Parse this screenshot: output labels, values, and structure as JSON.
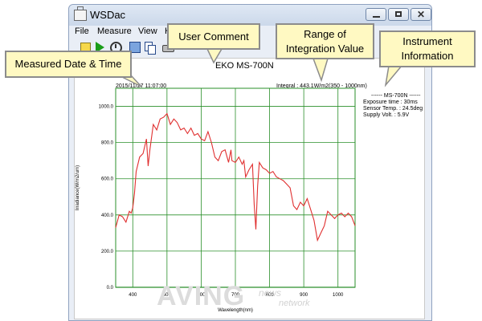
{
  "window": {
    "title": "WSDac",
    "menu": [
      "File",
      "Measure",
      "View",
      "H"
    ]
  },
  "toolbar": {
    "icons": [
      "open-icon",
      "run-icon",
      "timer-icon",
      "save-icon",
      "copy-icon",
      "print-icon"
    ]
  },
  "chart": {
    "heading": "EKO MS-700N",
    "datetime": "2015/11/27  11:07:00",
    "integral": "Integral : 443.1W/m2(350 - 1000nm)",
    "info": {
      "title": "------ MS-700N ------",
      "lines": [
        "Exposure time : 30ms",
        "Sensor Temp. : 24.5deg",
        "Supply Volt. : 5.9V"
      ]
    },
    "ylabel": "Irradiance(W/m2/um)",
    "xlabel": "Wavelength(nm)"
  },
  "chart_data": {
    "type": "line",
    "xlabel": "Wavelength(nm)",
    "ylabel": "Irradiance(W/m2/um)",
    "xlim": [
      350,
      1050
    ],
    "ylim": [
      0,
      1100
    ],
    "x_ticks": [
      400,
      500,
      600,
      700,
      800,
      900,
      1000
    ],
    "y_ticks": [
      "0.0",
      "200.0",
      "400.0",
      "600.0",
      "800.0",
      "1000.0"
    ],
    "grid": true,
    "series": [
      {
        "color": "#e03030",
        "x": [
          350,
          360,
          370,
          380,
          390,
          395,
          400,
          405,
          410,
          420,
          430,
          440,
          445,
          450,
          460,
          470,
          480,
          490,
          500,
          510,
          520,
          530,
          540,
          550,
          560,
          570,
          580,
          590,
          600,
          610,
          620,
          630,
          640,
          650,
          660,
          670,
          680,
          687,
          690,
          700,
          710,
          720,
          725,
          730,
          740,
          750,
          755,
          760,
          765,
          770,
          780,
          790,
          800,
          810,
          820,
          830,
          840,
          850,
          860,
          870,
          880,
          890,
          900,
          910,
          920,
          930,
          940,
          950,
          960,
          970,
          980,
          990,
          1000,
          1010,
          1020,
          1030,
          1040,
          1050
        ],
        "y": [
          330,
          400,
          390,
          360,
          420,
          410,
          440,
          520,
          640,
          720,
          740,
          820,
          670,
          760,
          900,
          870,
          930,
          940,
          960,
          900,
          930,
          910,
          870,
          880,
          850,
          880,
          840,
          850,
          820,
          810,
          860,
          800,
          720,
          700,
          750,
          760,
          690,
          760,
          700,
          690,
          720,
          680,
          700,
          610,
          650,
          680,
          460,
          320,
          560,
          690,
          660,
          650,
          630,
          640,
          610,
          600,
          590,
          570,
          550,
          450,
          430,
          470,
          450,
          490,
          430,
          370,
          260,
          300,
          340,
          420,
          400,
          380,
          400,
          410,
          390,
          410,
          390,
          340
        ]
      }
    ]
  },
  "callouts": {
    "date": "Measured Date & Time",
    "comment": "User Comment",
    "range_l1": "Range of",
    "range_l2": "Integration Value",
    "inst_l1": "Instrument",
    "inst_l2": "Information"
  },
  "watermark": {
    "main": "AVING",
    "sub1": "news",
    "sub2": "network"
  }
}
